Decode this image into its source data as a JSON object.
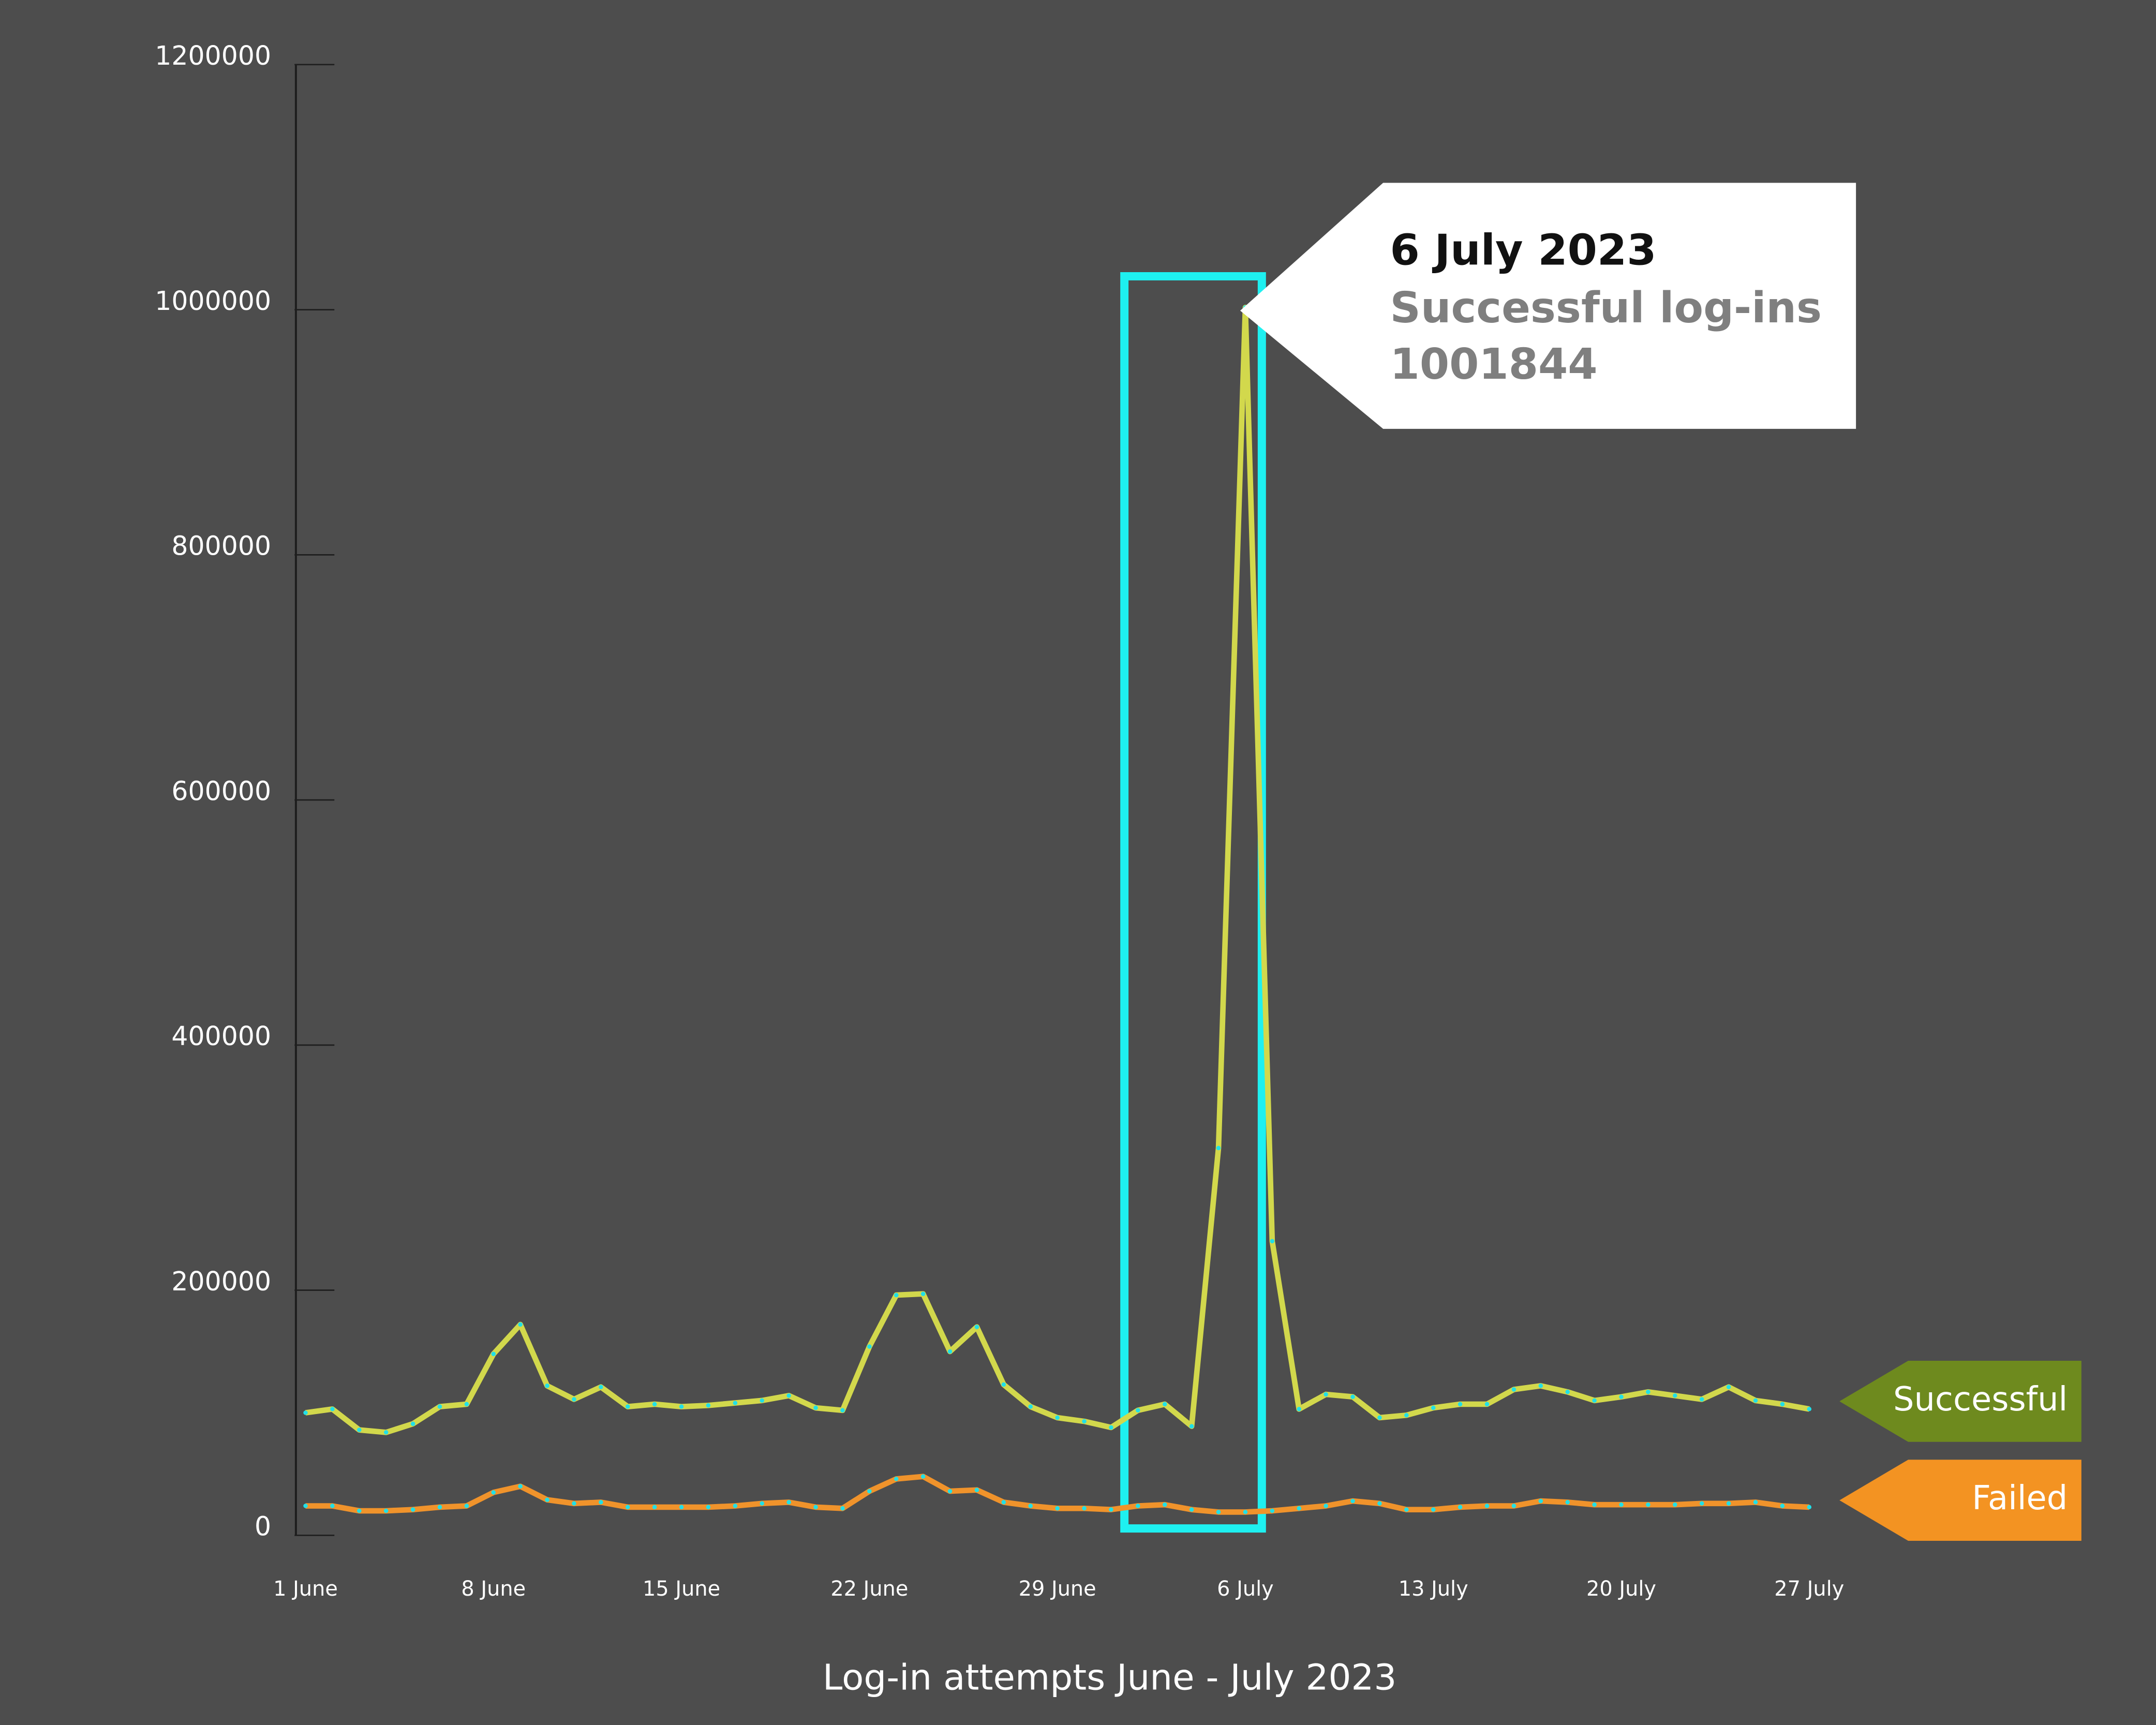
{
  "chart_data": {
    "type": "line",
    "title": "Log-in attempts June - July 2023",
    "categories": [
      "1 June",
      null,
      null,
      null,
      null,
      null,
      null,
      "8 June",
      null,
      null,
      null,
      null,
      null,
      null,
      "15 June",
      null,
      null,
      null,
      null,
      null,
      null,
      "22 June",
      null,
      null,
      null,
      null,
      null,
      null,
      "29 June",
      null,
      null,
      null,
      null,
      null,
      null,
      "6 July",
      null,
      null,
      null,
      null,
      null,
      null,
      "13 July",
      null,
      null,
      null,
      null,
      null,
      null,
      "20 July",
      null,
      null,
      null,
      null,
      null,
      null,
      "27 July"
    ],
    "series": [
      {
        "name": "Successful",
        "color": "#d2d84c",
        "legend_color": "#6e8a1e",
        "values": [
          100000,
          103000,
          86000,
          84000,
          91000,
          105000,
          107000,
          148000,
          172000,
          122000,
          111000,
          121000,
          105000,
          107000,
          105000,
          106000,
          108000,
          110000,
          114000,
          104000,
          102000,
          154000,
          196000,
          197000,
          150000,
          170000,
          123000,
          105000,
          96000,
          93000,
          88000,
          102000,
          107000,
          89000,
          316000,
          1001844,
          240000,
          103000,
          115000,
          113000,
          96000,
          98000,
          104000,
          107000,
          107000,
          119000,
          122000,
          117000,
          110000,
          113000,
          117000,
          114000,
          111000,
          121000,
          110000,
          107000,
          103000
        ]
      },
      {
        "name": "Failed",
        "color": "#f0932b",
        "legend_color": "#f39322",
        "values": [
          24000,
          24000,
          20000,
          20000,
          21000,
          23000,
          24000,
          35000,
          40000,
          29000,
          26000,
          27000,
          23000,
          23000,
          23000,
          23000,
          24000,
          26000,
          27000,
          23000,
          22000,
          36000,
          46000,
          48000,
          36000,
          37000,
          27000,
          24000,
          22000,
          22000,
          21000,
          24000,
          25000,
          21000,
          19000,
          19000,
          20000,
          22000,
          24000,
          28000,
          26000,
          21000,
          21000,
          23000,
          24000,
          24000,
          28000,
          27000,
          25000,
          25000,
          25000,
          25000,
          26000,
          26000,
          27000,
          24000,
          23000
        ]
      }
    ],
    "ylim": [
      0,
      1200000
    ],
    "yticks": [
      0,
      200000,
      400000,
      600000,
      800000,
      1000000,
      1200000
    ],
    "marker_color": "#20e0e8",
    "highlight": {
      "index": 35,
      "color": "#1ef0f0",
      "date": "6 July 2023",
      "label": "Successful log-ins"
    }
  }
}
